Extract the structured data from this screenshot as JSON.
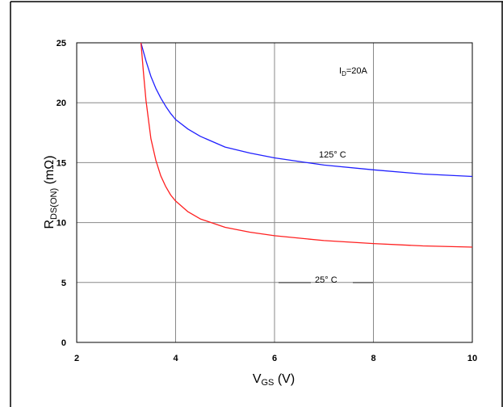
{
  "chart_data": {
    "type": "line",
    "xlabel": {
      "main": "V",
      "sub": "GS",
      "unit": " (V)"
    },
    "ylabel": {
      "main": "R",
      "sub": "DS(ON)",
      "unit": " (mΩ)"
    },
    "xlim": [
      2,
      10
    ],
    "ylim": [
      0,
      25
    ],
    "xticks": [
      2,
      4,
      6,
      8,
      10
    ],
    "yticks": [
      0,
      5,
      10,
      15,
      20,
      25
    ],
    "grid": true,
    "annotation": {
      "main": "I",
      "sub": "D",
      "rest": "=20A"
    },
    "series": [
      {
        "name": "125° C",
        "color": "#2020ff",
        "x": [
          3.3,
          3.4,
          3.5,
          3.6,
          3.7,
          3.8,
          3.9,
          4.0,
          4.25,
          4.5,
          5.0,
          5.5,
          6.0,
          7.0,
          8.0,
          9.0,
          10.0
        ],
        "y": [
          25.0,
          23.5,
          22.2,
          21.2,
          20.4,
          19.7,
          19.1,
          18.6,
          17.8,
          17.2,
          16.3,
          15.8,
          15.4,
          14.8,
          14.4,
          14.05,
          13.85
        ]
      },
      {
        "name": "25° C",
        "color": "#ff2020",
        "x": [
          3.3,
          3.35,
          3.4,
          3.5,
          3.6,
          3.7,
          3.8,
          3.9,
          4.0,
          4.25,
          4.5,
          5.0,
          5.5,
          6.0,
          7.0,
          8.0,
          9.0,
          10.0
        ],
        "y": [
          25.0,
          22.5,
          20.2,
          17.0,
          15.2,
          13.9,
          13.0,
          12.3,
          11.8,
          10.9,
          10.3,
          9.6,
          9.2,
          8.9,
          8.5,
          8.25,
          8.05,
          7.95
        ]
      }
    ]
  }
}
